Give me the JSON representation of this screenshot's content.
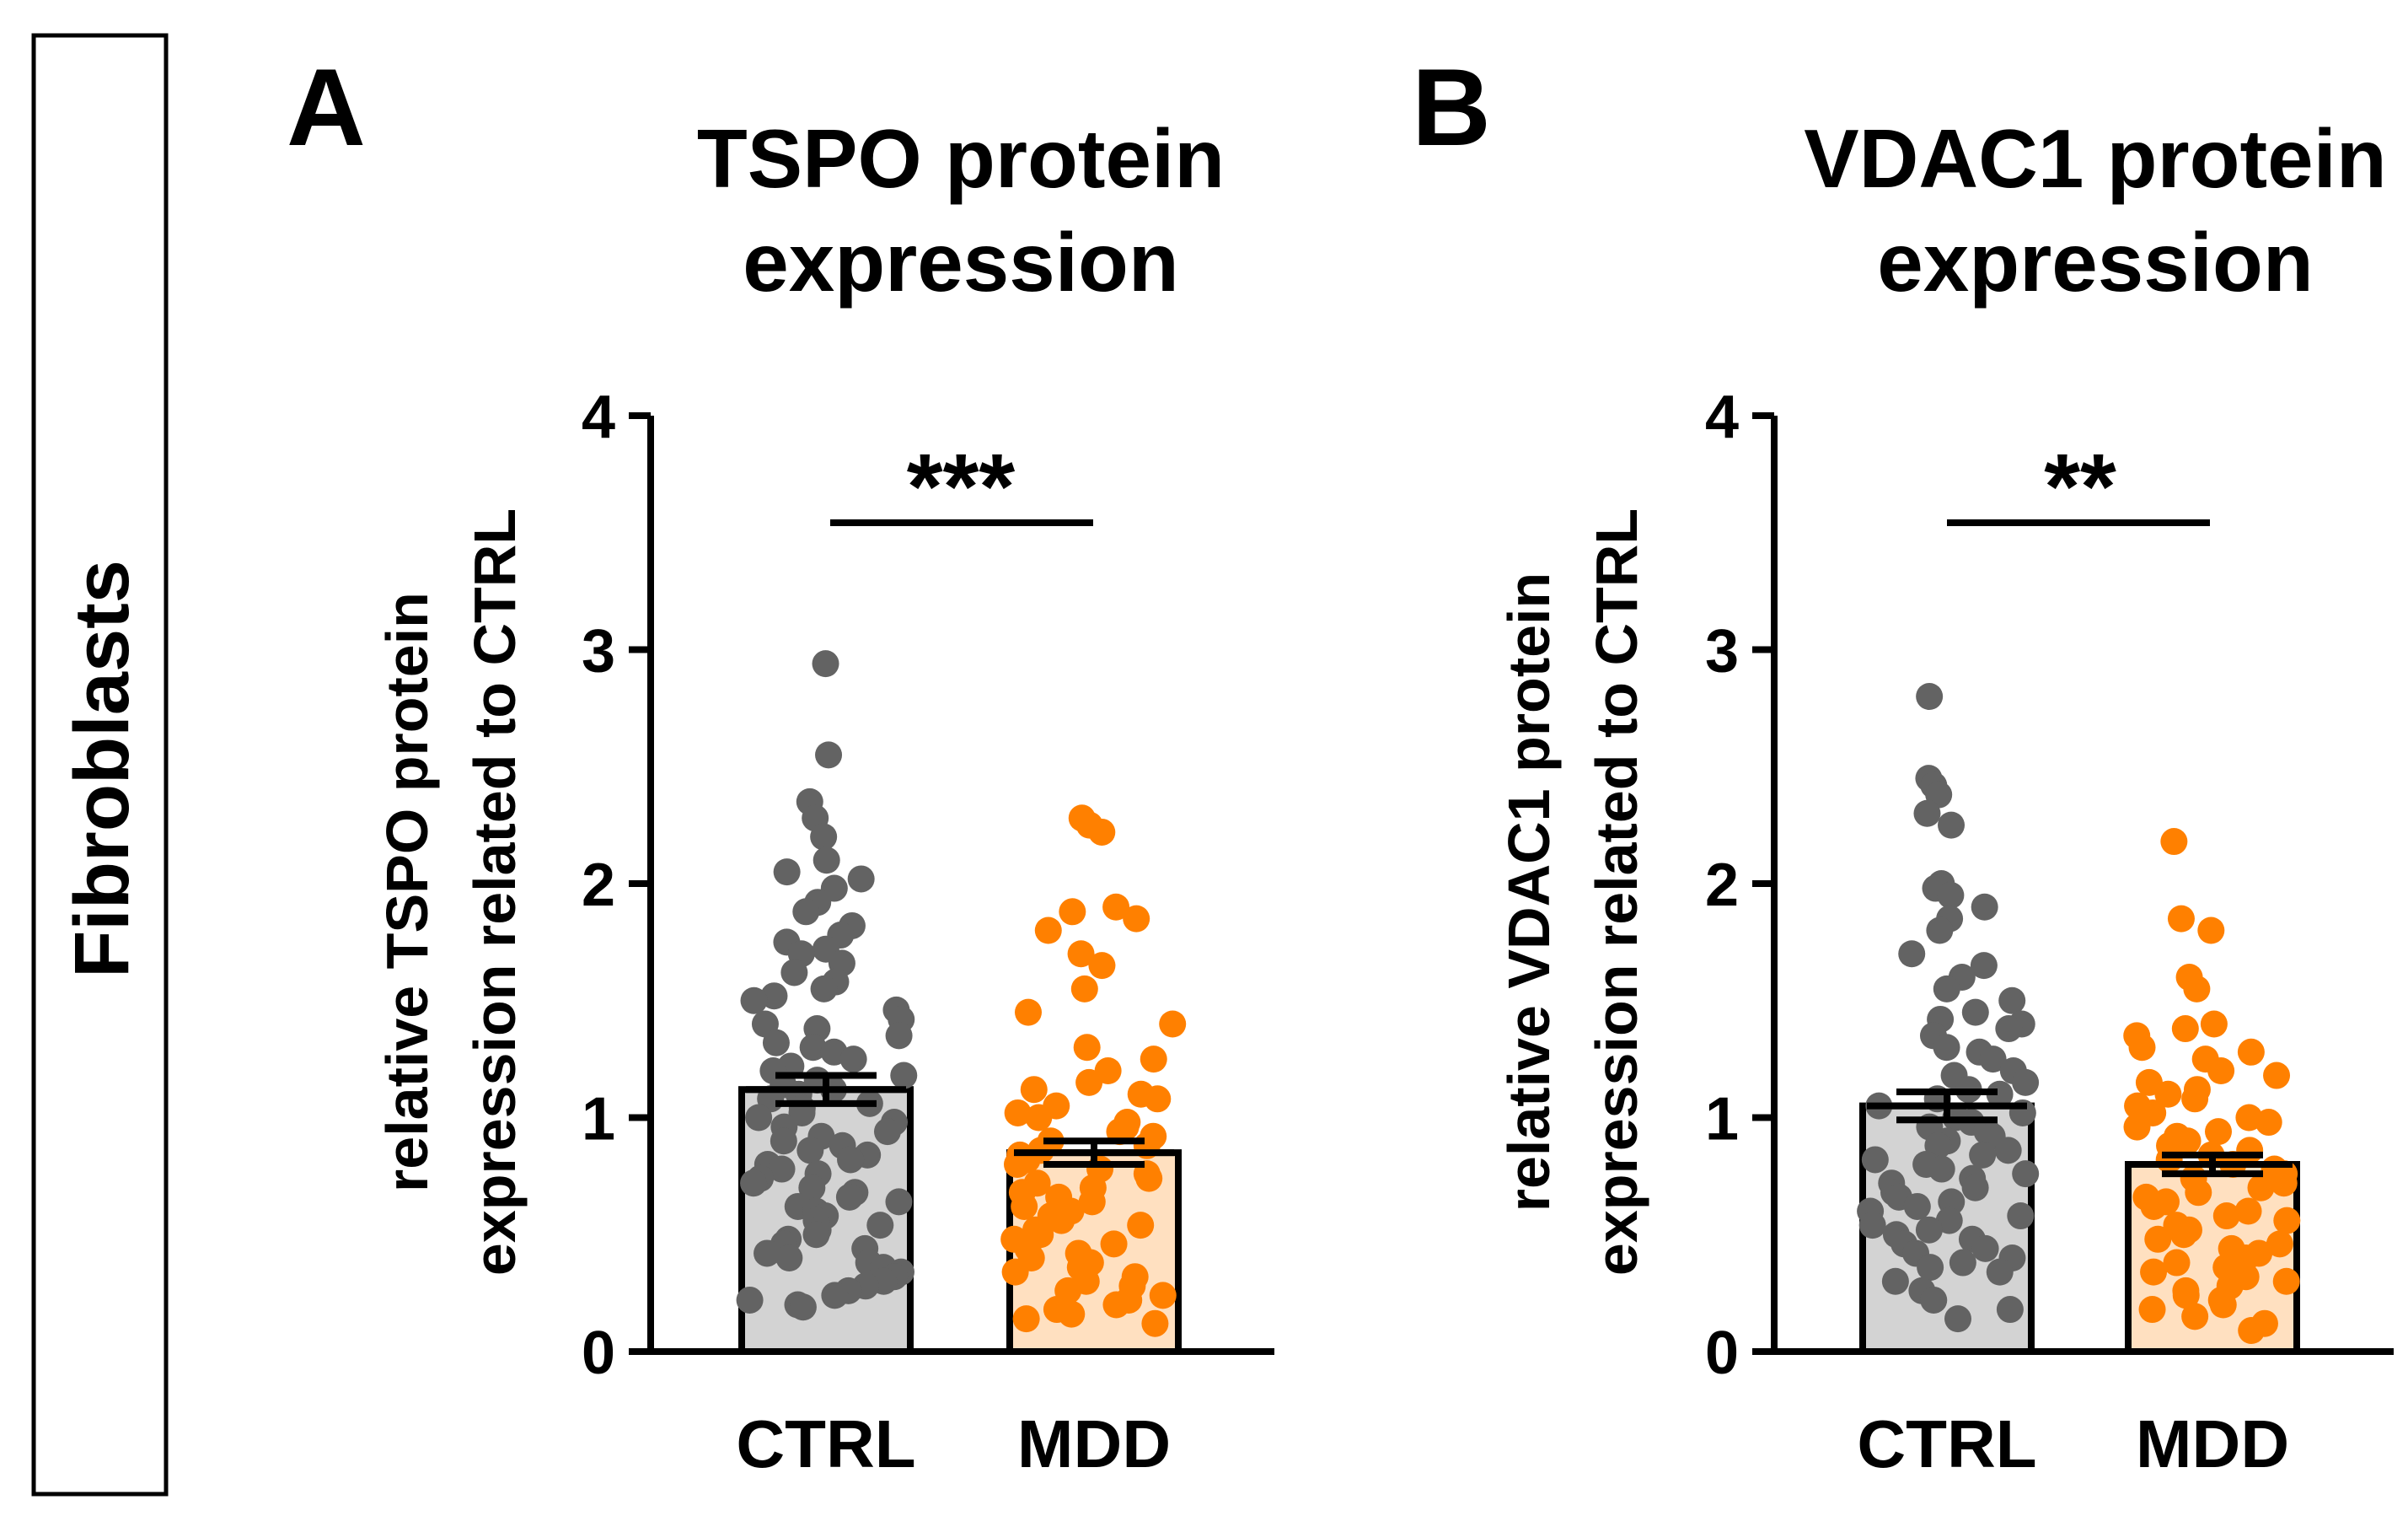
{
  "side_label": "Fibroblasts",
  "colors": {
    "ctrl_dot": "#636363",
    "ctrl_bar": "#d3d3d3",
    "mdd_dot": "#ff8000",
    "mdd_bar": "#ffe0c0",
    "axis": "#000000"
  },
  "chart_data": [
    {
      "type": "bar",
      "panel_letter": "A",
      "title_line1": "TSPO protein",
      "title_line2": "expression",
      "ylabel_line1": "relative TSPO protein",
      "ylabel_line2": "expression related to CTRL",
      "categories": [
        "CTRL",
        "MDD"
      ],
      "values": [
        1.12,
        0.85
      ],
      "sem": [
        0.06,
        0.05
      ],
      "ylim": [
        0,
        4
      ],
      "yticks": [
        "0",
        "1",
        "2",
        "3",
        "4"
      ],
      "significance": "***",
      "points": [
        [
          2.94,
          2.55,
          2.35,
          2.28,
          2.2,
          2.1,
          2.05,
          2.02,
          1.98,
          1.92,
          1.88,
          1.82,
          1.78,
          1.75,
          1.72,
          1.7,
          1.66,
          1.62,
          1.58,
          1.55,
          1.52,
          1.5,
          1.46,
          1.42,
          1.4,
          1.38,
          1.35,
          1.32,
          1.3,
          1.28,
          1.25,
          1.22,
          1.2,
          1.18,
          1.16,
          1.14,
          1.12,
          1.1,
          1.08,
          1.06,
          1.04,
          1.02,
          1.0,
          0.98,
          0.96,
          0.94,
          0.92,
          0.9,
          0.88,
          0.86,
          0.84,
          0.82,
          0.8,
          0.78,
          0.76,
          0.74,
          0.72,
          0.7,
          0.68,
          0.66,
          0.64,
          0.62,
          0.6,
          0.58,
          0.56,
          0.54,
          0.52,
          0.5,
          0.48,
          0.46,
          0.44,
          0.42,
          0.4,
          0.38,
          0.36,
          0.34,
          0.32,
          0.3,
          0.28,
          0.26,
          0.24,
          0.22,
          0.2,
          0.19
        ],
        [
          2.28,
          2.25,
          2.22,
          1.9,
          1.88,
          1.85,
          1.8,
          1.7,
          1.65,
          1.55,
          1.45,
          1.4,
          1.3,
          1.25,
          1.2,
          1.15,
          1.12,
          1.1,
          1.08,
          1.05,
          1.02,
          1.0,
          0.98,
          0.96,
          0.94,
          0.92,
          0.9,
          0.88,
          0.86,
          0.84,
          0.82,
          0.8,
          0.78,
          0.76,
          0.74,
          0.72,
          0.7,
          0.68,
          0.66,
          0.64,
          0.62,
          0.6,
          0.58,
          0.56,
          0.54,
          0.52,
          0.5,
          0.48,
          0.46,
          0.44,
          0.42,
          0.4,
          0.38,
          0.36,
          0.34,
          0.32,
          0.3,
          0.28,
          0.26,
          0.24,
          0.22,
          0.2,
          0.18,
          0.16,
          0.14,
          0.12
        ]
      ]
    },
    {
      "type": "bar",
      "panel_letter": "B",
      "title_line1": "VDAC1 protein",
      "title_line2": "expression",
      "ylabel_line1": "relative VDAC1 protein",
      "ylabel_line2": "expression related to CTRL",
      "categories": [
        "CTRL",
        "MDD"
      ],
      "values": [
        1.05,
        0.8
      ],
      "sem": [
        0.06,
        0.04
      ],
      "ylim": [
        0,
        4
      ],
      "yticks": [
        "0",
        "1",
        "2",
        "3",
        "4"
      ],
      "significance": "**",
      "points": [
        [
          2.8,
          2.45,
          2.42,
          2.38,
          2.3,
          2.25,
          2.0,
          1.98,
          1.95,
          1.9,
          1.85,
          1.8,
          1.7,
          1.65,
          1.6,
          1.55,
          1.5,
          1.45,
          1.42,
          1.4,
          1.38,
          1.35,
          1.3,
          1.28,
          1.25,
          1.2,
          1.18,
          1.15,
          1.12,
          1.1,
          1.08,
          1.05,
          1.02,
          1.0,
          0.98,
          0.96,
          0.94,
          0.92,
          0.9,
          0.88,
          0.86,
          0.84,
          0.82,
          0.8,
          0.78,
          0.76,
          0.74,
          0.72,
          0.7,
          0.68,
          0.66,
          0.64,
          0.62,
          0.6,
          0.58,
          0.56,
          0.54,
          0.52,
          0.5,
          0.48,
          0.46,
          0.44,
          0.42,
          0.4,
          0.38,
          0.36,
          0.34,
          0.3,
          0.26,
          0.22,
          0.18,
          0.14
        ],
        [
          2.18,
          1.85,
          1.8,
          1.6,
          1.55,
          1.4,
          1.38,
          1.35,
          1.3,
          1.28,
          1.25,
          1.2,
          1.18,
          1.15,
          1.12,
          1.1,
          1.08,
          1.05,
          1.02,
          1.0,
          0.98,
          0.96,
          0.94,
          0.92,
          0.9,
          0.88,
          0.86,
          0.84,
          0.82,
          0.8,
          0.78,
          0.76,
          0.74,
          0.72,
          0.7,
          0.68,
          0.66,
          0.64,
          0.62,
          0.6,
          0.58,
          0.56,
          0.54,
          0.52,
          0.5,
          0.48,
          0.46,
          0.44,
          0.42,
          0.4,
          0.38,
          0.36,
          0.34,
          0.32,
          0.3,
          0.28,
          0.26,
          0.24,
          0.22,
          0.2,
          0.18,
          0.15,
          0.12,
          0.09
        ]
      ]
    }
  ]
}
